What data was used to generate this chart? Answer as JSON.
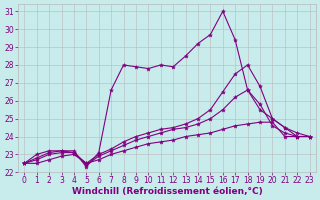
{
  "xlabel": "Windchill (Refroidissement éolien,°C)",
  "background_color": "#c8ecec",
  "line_color": "#800080",
  "grid_color": "#b8b8b8",
  "xlim": [
    -0.5,
    23.5
  ],
  "ylim": [
    22,
    31.4
  ],
  "xticks": [
    0,
    1,
    2,
    3,
    4,
    5,
    6,
    7,
    8,
    9,
    10,
    11,
    12,
    13,
    14,
    15,
    16,
    17,
    18,
    19,
    20,
    21,
    22,
    23
  ],
  "yticks": [
    22,
    23,
    24,
    25,
    26,
    27,
    28,
    29,
    30,
    31
  ],
  "lines": [
    {
      "x": [
        0,
        1,
        2,
        3,
        4,
        5,
        6,
        7,
        8,
        9,
        10,
        11,
        12,
        13,
        14,
        15,
        16,
        17,
        18,
        19,
        20,
        21,
        22,
        23
      ],
      "y": [
        22.5,
        22.5,
        22.7,
        22.9,
        23.0,
        22.5,
        22.7,
        23.0,
        23.2,
        23.4,
        23.6,
        23.7,
        23.8,
        24.0,
        24.1,
        24.2,
        24.4,
        24.6,
        24.7,
        24.8,
        24.8,
        24.0,
        24.0,
        24.0
      ]
    },
    {
      "x": [
        0,
        1,
        2,
        3,
        4,
        5,
        6,
        7,
        8,
        9,
        10,
        11,
        12,
        13,
        14,
        15,
        16,
        17,
        18,
        19,
        20,
        21,
        22,
        23
      ],
      "y": [
        22.5,
        22.7,
        23.0,
        23.1,
        23.1,
        22.4,
        22.9,
        23.2,
        23.5,
        23.8,
        24.0,
        24.2,
        24.4,
        24.5,
        24.7,
        25.0,
        25.5,
        26.2,
        26.6,
        25.5,
        25.0,
        24.5,
        24.0,
        24.0
      ]
    },
    {
      "x": [
        0,
        1,
        2,
        3,
        4,
        5,
        6,
        7,
        8,
        9,
        10,
        11,
        12,
        13,
        14,
        15,
        16,
        17,
        18,
        19,
        20,
        21,
        22,
        23
      ],
      "y": [
        22.5,
        22.8,
        23.1,
        23.2,
        23.1,
        22.5,
        23.0,
        23.3,
        23.7,
        24.0,
        24.2,
        24.4,
        24.5,
        24.7,
        25.0,
        25.5,
        26.5,
        27.5,
        28.0,
        26.8,
        25.0,
        24.5,
        24.2,
        24.0
      ]
    },
    {
      "x": [
        0,
        1,
        2,
        3,
        4,
        5,
        6,
        7,
        8,
        9,
        10,
        11,
        12,
        13,
        14,
        15,
        16,
        17,
        18,
        19,
        20,
        21,
        22,
        23
      ],
      "y": [
        22.5,
        23.0,
        23.2,
        23.2,
        23.2,
        22.3,
        23.1,
        26.6,
        28.0,
        27.9,
        27.8,
        28.0,
        27.9,
        28.5,
        29.2,
        29.7,
        31.0,
        29.4,
        26.6,
        25.8,
        24.6,
        24.2,
        24.0,
        24.0
      ]
    }
  ],
  "tick_fontsize": 5.5,
  "label_fontsize": 6.5
}
